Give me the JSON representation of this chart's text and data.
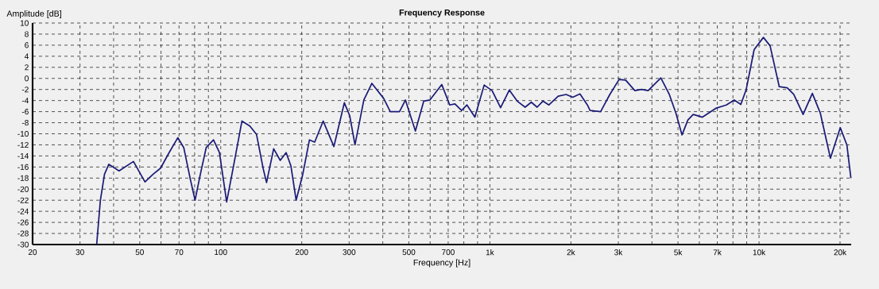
{
  "chart_data": {
    "type": "line",
    "title": "Frequency Response",
    "xlabel": "Frequency [Hz]",
    "ylabel": "Amplitude [dB]",
    "log": "x",
    "grid": true,
    "xlim": [
      20,
      22000
    ],
    "ylim": [
      -30,
      10
    ],
    "xticks": [
      20,
      30,
      {
        "value": 40,
        "label": null
      },
      50,
      {
        "value": 60,
        "label": null
      },
      70,
      {
        "value": 80,
        "label": null
      },
      {
        "value": 90,
        "label": null
      },
      100,
      200,
      300,
      {
        "value": 400,
        "label": null
      },
      500,
      {
        "value": 600,
        "label": null
      },
      700,
      {
        "value": 800,
        "label": null
      },
      {
        "value": 900,
        "label": null
      },
      {
        "value": 1000,
        "label": "1k"
      },
      {
        "value": 2000,
        "label": "2k"
      },
      {
        "value": 3000,
        "label": "3k"
      },
      {
        "value": 4000,
        "label": null
      },
      {
        "value": 5000,
        "label": "5k"
      },
      {
        "value": 6000,
        "label": null
      },
      {
        "value": 7000,
        "label": "7k"
      },
      {
        "value": 8000,
        "label": null
      },
      {
        "value": 9000,
        "label": null
      },
      {
        "value": 10000,
        "label": "10k"
      },
      {
        "value": 20000,
        "label": "20k"
      }
    ],
    "yticks": [
      -30,
      -28,
      -26,
      -24,
      -22,
      -20,
      -18,
      -16,
      -14,
      -12,
      -10,
      -8,
      -6,
      -4,
      -2,
      0,
      2,
      4,
      6,
      8,
      10
    ],
    "series": [
      {
        "color": "#1c1c78",
        "x": [
          34.6,
          35.7,
          37.0,
          38.4,
          41.9,
          47.4,
          52.3,
          56.1,
          59.8,
          64.3,
          69.3,
          72.9,
          77.1,
          80.3,
          84.0,
          88.3,
          94.0,
          98.9,
          105.2,
          112,
          119.9,
          128.3,
          135.8,
          143.8,
          148.0,
          157.3,
          166.4,
          175,
          182.3,
          190.6,
          201.8,
          213.6,
          223.4,
          240.2,
          263.3,
          287.9,
          301.3,
          315.4,
          340.2,
          364.3,
          403,
          426.6,
          461.6,
          485.6,
          528.8,
          568,
          598.4,
          662.5,
          709.3,
          741.5,
          785,
          822,
          879.6,
          952.3,
          1019,
          1096,
          1181,
          1263,
          1352,
          1425,
          1498,
          1574,
          1657,
          1794,
          1920,
          2032,
          2161,
          2303,
          2356,
          2579,
          2790,
          3020,
          3194,
          3457,
          3658,
          3873,
          4317,
          4642,
          4914,
          5174,
          5441,
          5694,
          6163,
          6906,
          7558,
          8090,
          8558,
          8961,
          9590,
          10380,
          10990,
          11890,
          12730,
          13460,
          14580,
          15780,
          16900,
          18420,
          20040,
          21200,
          21940
        ],
        "values": [
          -30,
          -22.1,
          -17.3,
          -15.5,
          -16.7,
          -15.0,
          -18.7,
          -17.3,
          -16.2,
          -13.4,
          -10.7,
          -12.5,
          -18.2,
          -22.0,
          -17.3,
          -12.5,
          -11.1,
          -13.4,
          -22.3,
          -15.4,
          -7.7,
          -8.6,
          -10.1,
          -16.3,
          -18.8,
          -12.7,
          -14.8,
          -13.4,
          -15.8,
          -22.0,
          -17.3,
          -11.1,
          -11.5,
          -7.7,
          -12.3,
          -4.4,
          -6.7,
          -12.0,
          -3.9,
          -0.9,
          -3.6,
          -6.0,
          -6.0,
          -3.9,
          -9.5,
          -4.1,
          -3.9,
          -1.1,
          -4.8,
          -4.6,
          -5.8,
          -4.8,
          -7.0,
          -1.2,
          -2.2,
          -5.3,
          -2.1,
          -4.1,
          -5.2,
          -4.3,
          -5.2,
          -4.1,
          -4.8,
          -3.2,
          -2.9,
          -3.4,
          -2.8,
          -4.8,
          -5.8,
          -6.0,
          -2.9,
          -0.2,
          -0.3,
          -2.2,
          -2.0,
          -2.2,
          0.1,
          -2.9,
          -6.3,
          -10.2,
          -7.5,
          -6.5,
          -7.0,
          -5.4,
          -4.8,
          -3.9,
          -4.7,
          -2.0,
          5.2,
          7.4,
          5.9,
          -1.5,
          -1.7,
          -2.9,
          -6.5,
          -2.7,
          -6.3,
          -14.4,
          -8.9,
          -12.0,
          -18.0
        ]
      }
    ]
  }
}
